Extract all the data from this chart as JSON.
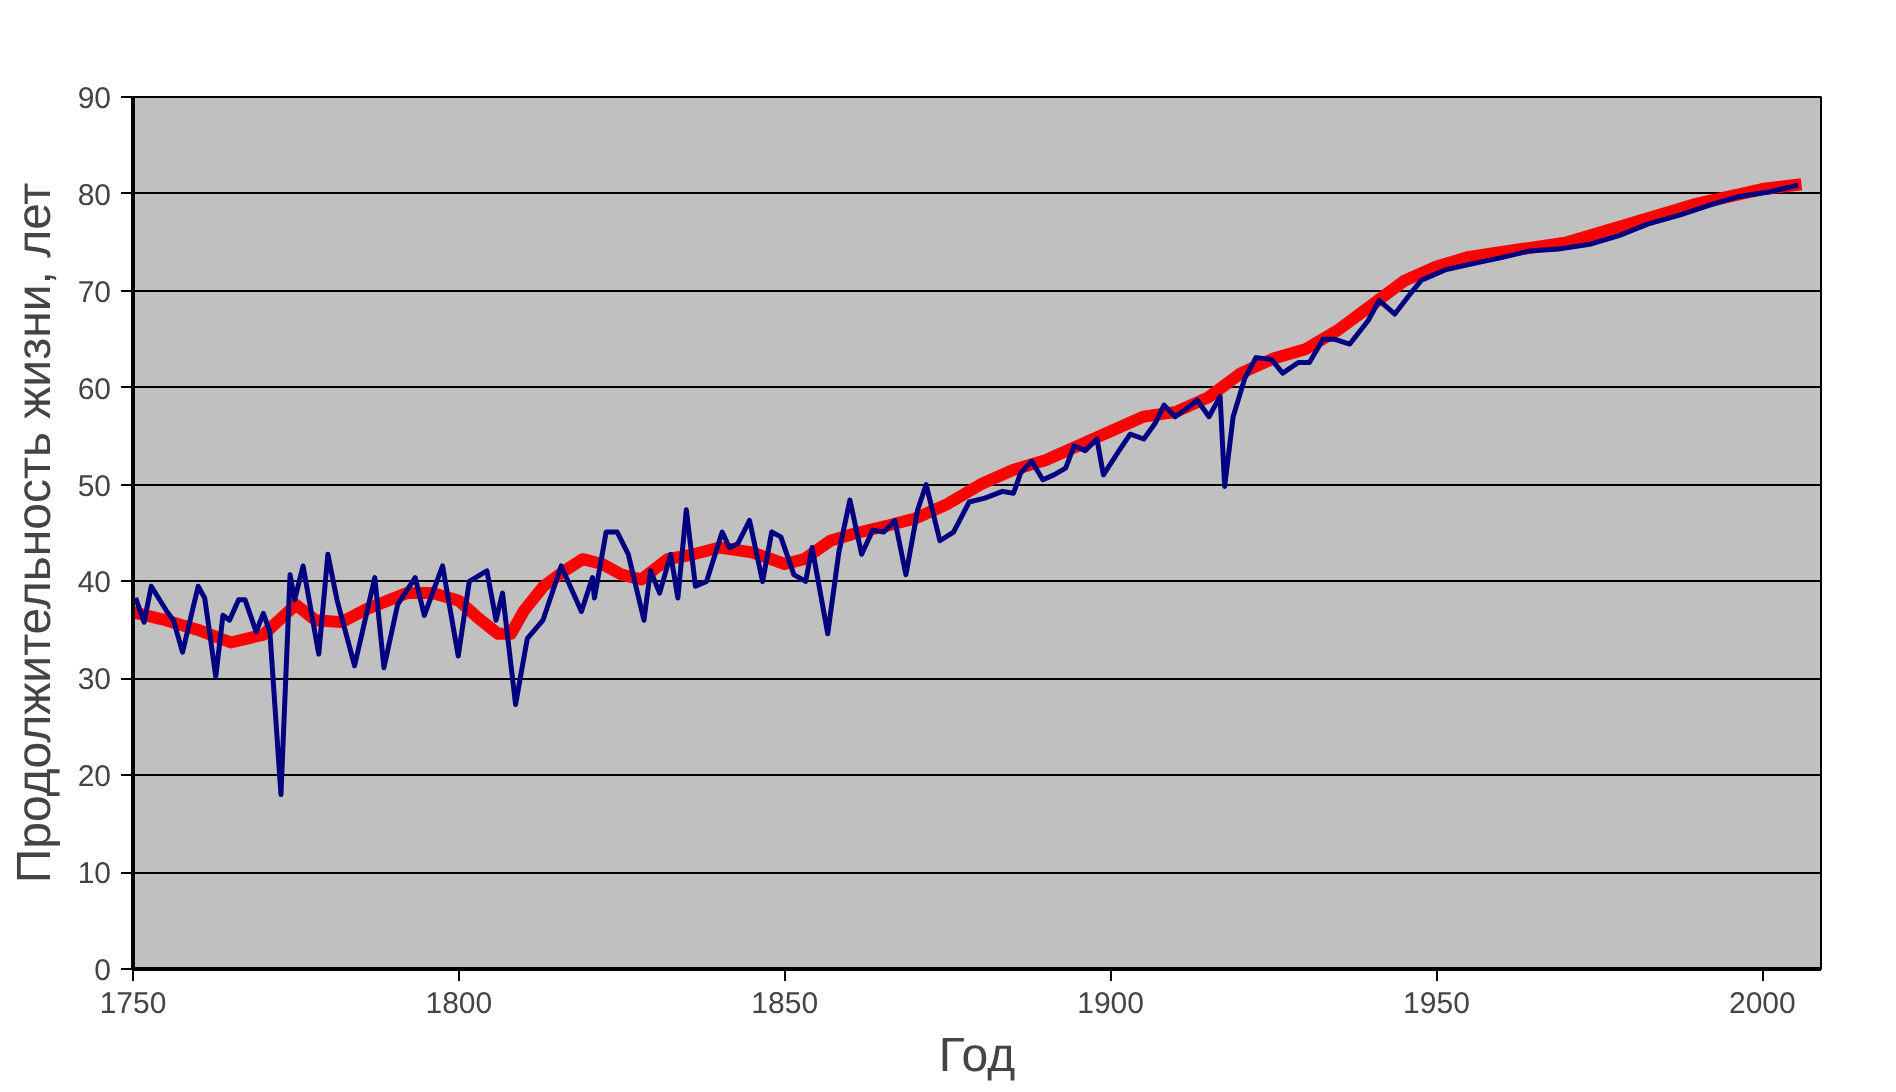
{
  "chart_data": {
    "type": "line",
    "xlabel": "Год",
    "ylabel": "Продолжительность жизни, лет",
    "xlim": [
      1750,
      2009
    ],
    "ylim": [
      0,
      90
    ],
    "xticks": [
      1750,
      1800,
      1850,
      1900,
      1950,
      2000
    ],
    "yticks": [
      0,
      10,
      20,
      30,
      40,
      50,
      60,
      70,
      80,
      90
    ],
    "grid": "y",
    "marker": "none",
    "line_style": "solid",
    "series": [
      {
        "color": "#000080",
        "x": [
          1750.4,
          1751.7,
          1752.8,
          1755.2,
          1756.2,
          1757.6,
          1760,
          1761,
          1762.7,
          1763.8,
          1764.8,
          1766.2,
          1767.2,
          1768.9,
          1770,
          1771,
          1772.7,
          1774.1,
          1774.8,
          1776.1,
          1778.5,
          1779.9,
          1781.3,
          1784,
          1787.1,
          1788.5,
          1790.6,
          1793.3,
          1794.7,
          1797.5,
          1799.9,
          1801.6,
          1804.3,
          1805.7,
          1806.7,
          1808.7,
          1810.5,
          1812.9,
          1815.7,
          1818.8,
          1820.5,
          1820.8,
          1822.6,
          1824.3,
          1826,
          1828.4,
          1829.4,
          1830.8,
          1832.5,
          1833.6,
          1834.9,
          1836.3,
          1838,
          1840.4,
          1841.5,
          1842.8,
          1844.6,
          1846.6,
          1848,
          1849.4,
          1851.4,
          1853.2,
          1854.2,
          1856.6,
          1858.3,
          1860,
          1861.8,
          1863.5,
          1865.2,
          1866.9,
          1868.6,
          1870.4,
          1871.7,
          1873.8,
          1875.9,
          1878.3,
          1880.7,
          1883.4,
          1885.1,
          1886.2,
          1887.9,
          1889.6,
          1891.3,
          1893.1,
          1894.4,
          1896.1,
          1897.9,
          1898.9,
          1901.3,
          1903,
          1905.1,
          1906.8,
          1908.2,
          1909.9,
          1912,
          1913.3,
          1915.1,
          1916.8,
          1917.5,
          1918.8,
          1920.6,
          1922.3,
          1924.7,
          1926.4,
          1928.8,
          1930.5,
          1932.6,
          1934.3,
          1936.7,
          1939.5,
          1941.2,
          1943.6,
          1946,
          1947.7,
          1951.5,
          1956.3,
          1959.8,
          1964.2,
          1968.7,
          1973.5,
          1978,
          1982.5,
          1987.3,
          1991.7,
          1996.2,
          2001,
          2005.5
        ],
        "values": [
          38.3,
          35.8,
          39.5,
          36.9,
          36,
          32.7,
          39.5,
          38.3,
          30.2,
          36.5,
          36,
          38.1,
          38.1,
          34.8,
          36.7,
          34.8,
          18,
          40.7,
          38.1,
          41.6,
          32.5,
          42.8,
          38.1,
          31.3,
          40.4,
          31.1,
          37.6,
          40.4,
          36.5,
          41.6,
          32.3,
          40,
          41.1,
          36,
          38.8,
          27.3,
          34.1,
          36,
          41.6,
          36.9,
          40.4,
          38.3,
          45.1,
          45.1,
          42.8,
          36,
          41.1,
          38.8,
          42.8,
          38.3,
          47.4,
          39.5,
          40,
          45.1,
          43.5,
          43.9,
          46.3,
          40,
          45.1,
          44.6,
          40.7,
          40,
          43.5,
          34.6,
          43,
          48.4,
          42.8,
          45.3,
          45.1,
          46.3,
          40.7,
          47.4,
          50,
          44.2,
          45.1,
          48.2,
          48.6,
          49.3,
          49.1,
          51.2,
          52.4,
          50.5,
          51,
          51.7,
          54,
          53.5,
          54.7,
          51,
          53.5,
          55.2,
          54.7,
          56.3,
          58.2,
          57,
          58,
          58.7,
          57,
          59.1,
          49.8,
          57,
          61,
          63.1,
          62.9,
          61.5,
          62.6,
          62.6,
          65,
          65,
          64.5,
          66.9,
          69,
          67.6,
          69.7,
          71.1,
          72.2,
          72.9,
          73.4,
          74.1,
          74.3,
          74.8,
          75.7,
          76.9,
          77.8,
          78.8,
          79.7,
          80.2,
          80.9
        ]
      },
      {
        "color": "#ff0000",
        "x": [
          1750,
          1755,
          1760,
          1765,
          1770,
          1775,
          1778,
          1782,
          1786,
          1792,
          1796,
          1800,
          1803,
          1806,
          1808,
          1810,
          1813,
          1816,
          1819,
          1822,
          1825,
          1828,
          1832,
          1836,
          1840,
          1845,
          1850,
          1853,
          1857,
          1861,
          1866,
          1870,
          1875,
          1880,
          1885,
          1890,
          1895,
          1900,
          1905,
          1910,
          1915,
          1920,
          1925,
          1930,
          1935,
          1940,
          1945,
          1950,
          1955,
          1960,
          1970,
          1980,
          1990,
          2000,
          2006
        ],
        "values": [
          36.8,
          36,
          35,
          33.7,
          34.5,
          37.6,
          36,
          35.8,
          37.2,
          38.8,
          38.8,
          38,
          36.2,
          34.6,
          34.6,
          37,
          39.5,
          41,
          42.3,
          41.8,
          40.7,
          40.2,
          42.3,
          42.8,
          43.5,
          43,
          41.8,
          42.3,
          44.2,
          45,
          45.8,
          46.5,
          48,
          50,
          51.5,
          52.5,
          54,
          55.5,
          57,
          57.5,
          59,
          61.5,
          63,
          64,
          66,
          68.5,
          71,
          72.5,
          73.5,
          74,
          75,
          77,
          79,
          80.5,
          81
        ]
      }
    ]
  }
}
